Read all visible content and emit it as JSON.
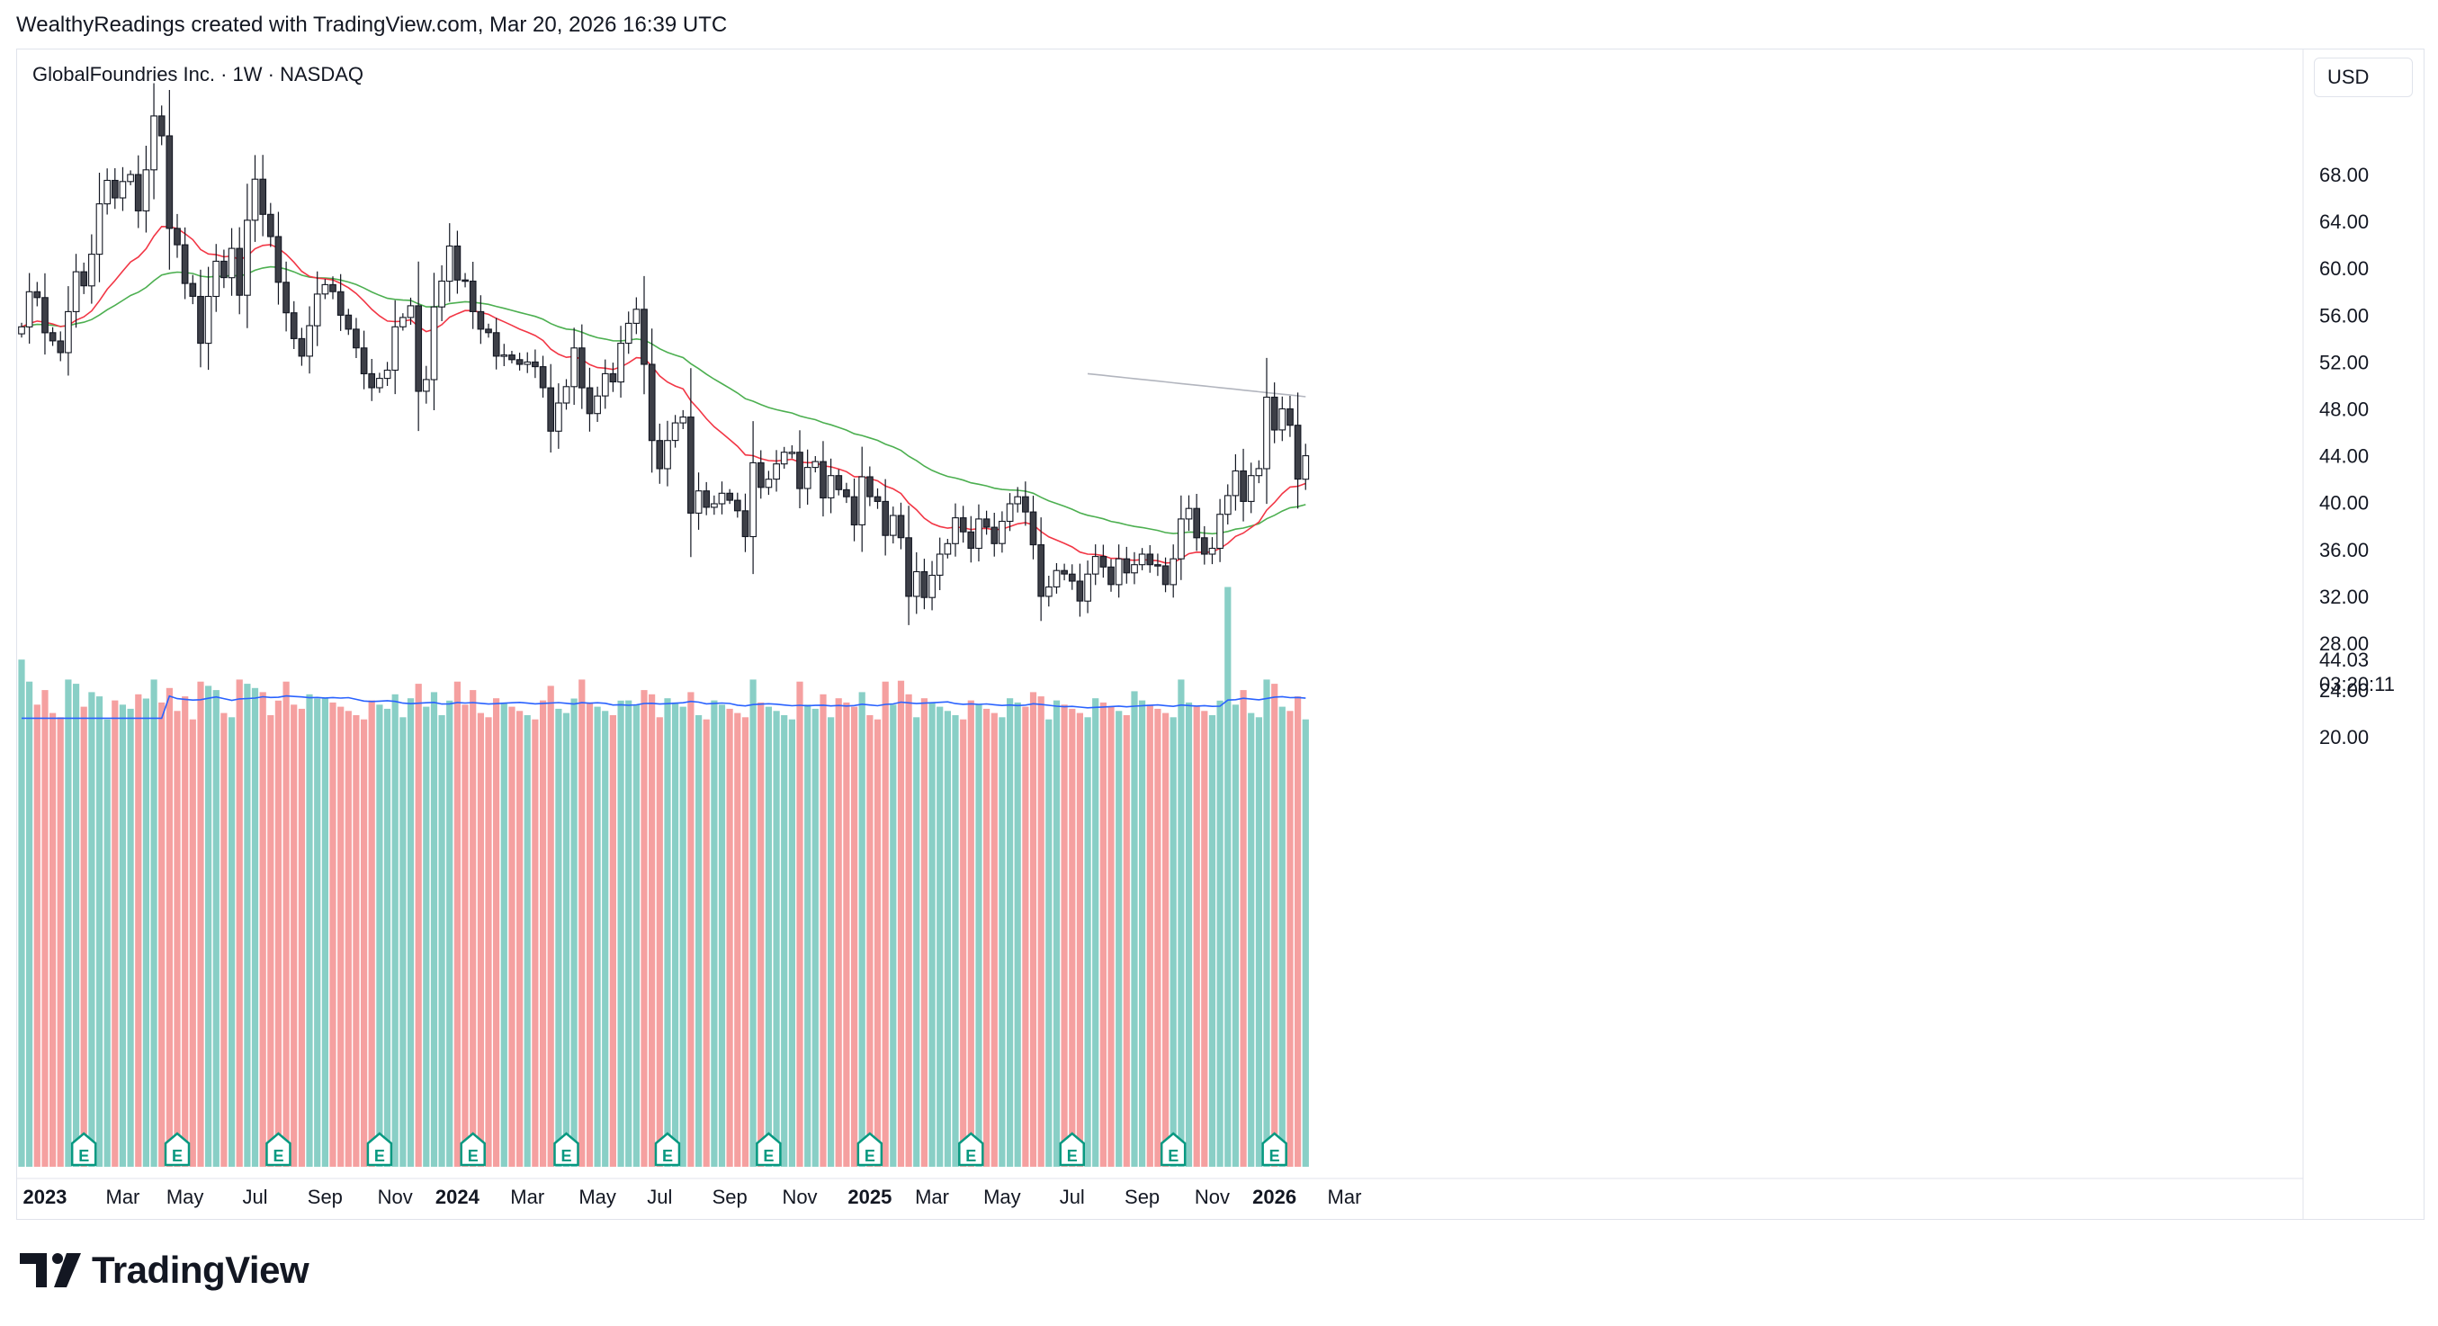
{
  "header": {
    "attribution": "WealthyReadings created with TradingView.com, Mar 20, 2026 16:39 UTC"
  },
  "symbol": {
    "title": "GlobalFoundries Inc. · 1W · NASDAQ"
  },
  "currency": "USD",
  "logo_text": "TradingView",
  "colors": {
    "candle_up_fill": "#ffffff",
    "candle_down_fill": "#3d3f47",
    "candle_border": "#131722",
    "ema_fast": "#f23645",
    "ema_slow": "#4caf50",
    "ma_long": "#b2b5be",
    "volume_up": "#89cfc6",
    "volume_down": "#f5a0a0",
    "volume_ma": "#2962ff",
    "earnings_badge": "#089981"
  },
  "chart_data": {
    "type": "candlestick",
    "title": "GlobalFoundries Inc. · 1W · NASDAQ",
    "ylim": [
      19,
      75
    ],
    "y_ticks": [
      20,
      24,
      28,
      32,
      36,
      40,
      44,
      48,
      52,
      56,
      60,
      64,
      68
    ],
    "y_tick_labels": [
      "20.00",
      "24.00",
      "28.00",
      "32.00",
      "36.00",
      "40.00",
      "44.00",
      "48.00",
      "52.00",
      "56.00",
      "60.00",
      "64.00",
      "68.00"
    ],
    "last_price": "44.03",
    "countdown": "03:20:11",
    "x_labels": [
      {
        "label": "2023",
        "bar": 3,
        "bold": true
      },
      {
        "label": "Mar",
        "bar": 13
      },
      {
        "label": "May",
        "bar": 21
      },
      {
        "label": "Jul",
        "bar": 30
      },
      {
        "label": "Sep",
        "bar": 39
      },
      {
        "label": "Nov",
        "bar": 48
      },
      {
        "label": "2024",
        "bar": 56,
        "bold": true
      },
      {
        "label": "Mar",
        "bar": 65
      },
      {
        "label": "May",
        "bar": 74
      },
      {
        "label": "Jul",
        "bar": 82
      },
      {
        "label": "Sep",
        "bar": 91
      },
      {
        "label": "Nov",
        "bar": 100
      },
      {
        "label": "2025",
        "bar": 109,
        "bold": true
      },
      {
        "label": "Mar",
        "bar": 117
      },
      {
        "label": "May",
        "bar": 126
      },
      {
        "label": "Jul",
        "bar": 135
      },
      {
        "label": "Sep",
        "bar": 144
      },
      {
        "label": "Nov",
        "bar": 153
      },
      {
        "label": "2026",
        "bar": 161,
        "bold": true
      },
      {
        "label": "Mar",
        "bar": 170
      }
    ],
    "close": [
      55.0,
      58.0,
      57.5,
      54.5,
      53.8,
      52.8,
      56.3,
      59.7,
      58.5,
      61.2,
      65.5,
      67.5,
      66.0,
      67.4,
      68.0,
      64.9,
      68.4,
      73.0,
      71.3,
      63.4,
      62.0,
      58.7,
      57.6,
      53.6,
      57.6,
      60.6,
      59.2,
      61.7,
      57.7,
      64.1,
      67.6,
      64.6,
      62.7,
      58.8,
      56.2,
      54.0,
      52.5,
      55.1,
      57.8,
      58.6,
      58.0,
      56.0,
      54.8,
      53.2,
      51.0,
      49.8,
      50.6,
      51.3,
      55.0,
      55.8,
      56.8,
      49.5,
      50.5,
      56.7,
      58.9,
      61.9,
      59.0,
      58.9,
      56.3,
      54.8,
      54.5,
      52.5,
      52.6,
      52.2,
      51.8,
      52.0,
      51.6,
      49.8,
      46.1,
      48.5,
      49.9,
      53.2,
      49.8,
      47.6,
      49.1,
      51.0,
      50.3,
      53.6,
      55.3,
      56.5,
      51.8,
      45.3,
      42.9,
      45.3,
      46.8,
      47.3,
      39.1,
      41.0,
      39.6,
      39.9,
      40.8,
      40.2,
      39.3,
      37.1,
      43.4,
      41.3,
      42.0,
      43.3,
      44.3,
      44.3,
      41.2,
      43.0,
      43.5,
      40.4,
      42.3,
      41.1,
      40.5,
      38.1,
      42.2,
      40.5,
      40.1,
      37.2,
      38.9,
      37.0,
      32.0,
      34.1,
      31.9,
      33.8,
      35.6,
      36.5,
      38.7,
      37.5,
      36.1,
      38.6,
      37.9,
      36.5,
      38.4,
      39.9,
      40.5,
      39.2,
      36.4,
      32.0,
      32.8,
      34.2,
      33.9,
      33.3,
      31.6,
      33.9,
      35.4,
      34.5,
      33.0,
      35.2,
      34.0,
      34.7,
      35.6,
      34.7,
      34.6,
      33.0,
      35.2,
      38.6,
      39.5,
      37.0,
      35.6,
      36.1,
      39.0,
      40.6,
      42.7,
      40.1,
      42.3,
      42.9,
      49.0,
      46.2,
      48.0,
      46.6,
      42.0,
      44.0
    ],
    "vol_ma_tail": 23.0
  }
}
